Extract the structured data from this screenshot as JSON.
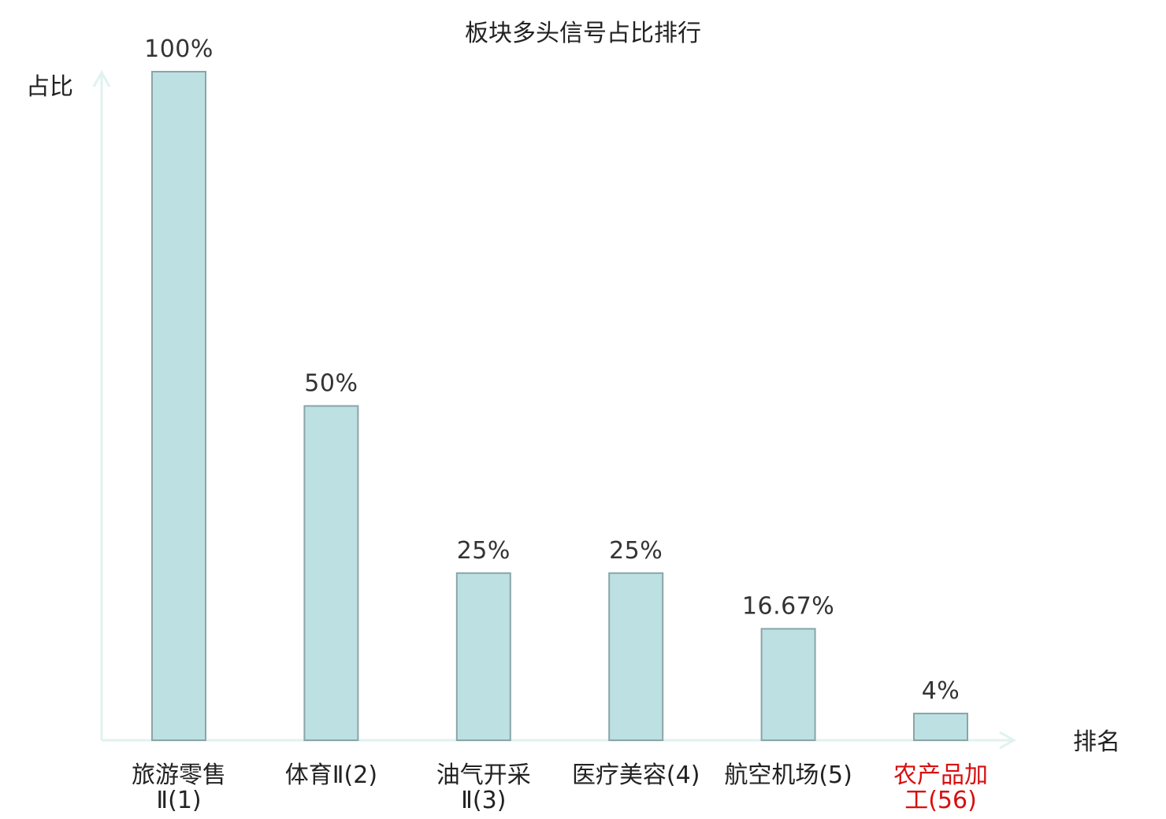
{
  "chart_data": {
    "type": "bar",
    "title": "板块多头信号占比排行",
    "ylabel": "占比",
    "xlabel": "排名",
    "ylim": [
      0,
      100
    ],
    "grid": false,
    "categories": [
      {
        "name": "旅游零售Ⅱ",
        "rank": "(1)",
        "lines": [
          "旅游零售",
          "Ⅱ(1)"
        ],
        "highlight": false
      },
      {
        "name": "体育Ⅱ",
        "rank": "(2)",
        "lines": [
          "体育Ⅱ(2)"
        ],
        "highlight": false
      },
      {
        "name": "油气开采Ⅱ",
        "rank": "(3)",
        "lines": [
          "油气开采",
          "Ⅱ(3)"
        ],
        "highlight": false
      },
      {
        "name": "医疗美容",
        "rank": "(4)",
        "lines": [
          "医疗美容(4)"
        ],
        "highlight": false
      },
      {
        "name": "航空机场",
        "rank": "(5)",
        "lines": [
          "航空机场(5)"
        ],
        "highlight": false
      },
      {
        "name": "农产品加工",
        "rank": "(56)",
        "lines": [
          "农产品加",
          "工(56)"
        ],
        "highlight": true
      }
    ],
    "values": [
      100,
      50,
      25,
      25,
      16.67,
      4
    ],
    "value_labels": [
      "100%",
      "50%",
      "25%",
      "25%",
      "16.67%",
      "4%"
    ],
    "colors": {
      "bar_fill": "#bde0e3",
      "bar_stroke": "#8aa5a8",
      "axis": "#e0f2ef",
      "highlight_text": "#d80f0f"
    }
  }
}
